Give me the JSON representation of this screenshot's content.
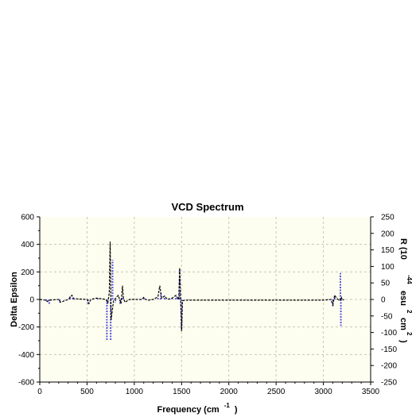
{
  "chart_data": {
    "type": "line",
    "title": "VCD Spectrum",
    "xlabel": {
      "main": "Frequency (cm",
      "sup": "-1",
      "end": ")"
    },
    "ylabel_left": "Delta Epsilon",
    "ylabel_right": {
      "parts": [
        "R (10",
        "-44",
        "esu",
        "2",
        "cm",
        "2",
        ")"
      ]
    },
    "xlim": [
      0,
      3500
    ],
    "ylim_left": [
      -600,
      600
    ],
    "ylim_right": [
      -250,
      250
    ],
    "x_ticks": [
      0,
      500,
      1000,
      1500,
      2000,
      2500,
      3000,
      3500
    ],
    "x_tick_labels": [
      "0",
      "500",
      "1000",
      "1500",
      "2000",
      "2500",
      "3000",
      "3500"
    ],
    "y_left_ticks": [
      -600,
      -400,
      -200,
      0,
      200,
      400,
      600
    ],
    "y_left_tick_labels": [
      "-600",
      "-400",
      "-200",
      "0",
      "200",
      "400",
      "600"
    ],
    "y_right_ticks": [
      -250,
      -200,
      -150,
      -100,
      -50,
      0,
      50,
      100,
      150,
      200,
      250
    ],
    "y_right_tick_labels": [
      "-250",
      "-200",
      "-150",
      "-100",
      "-50",
      "0",
      "50",
      "100",
      "150",
      "200",
      "250"
    ],
    "grid": true,
    "colors": {
      "background": "#fefef0",
      "spectrum": "#000000",
      "sticks": "#5555dd",
      "grid": "#c8c8b4"
    },
    "series": [
      {
        "role": "spectrum",
        "axis": "left",
        "x": [
          0,
          60,
          80,
          100,
          200,
          220,
          300,
          340,
          360,
          500,
          520,
          540,
          600,
          650,
          700,
          720,
          735,
          745,
          755,
          780,
          830,
          860,
          875,
          885,
          900,
          950,
          1080,
          1100,
          1120,
          1150,
          1200,
          1250,
          1270,
          1290,
          1320,
          1350,
          1400,
          1440,
          1470,
          1480,
          1490,
          1500,
          1510,
          1540,
          1600,
          2000,
          2500,
          3000,
          3080,
          3100,
          3120,
          3140,
          3170,
          3190,
          3200,
          3220
        ],
        "y": [
          0,
          -5,
          -15,
          -5,
          0,
          -20,
          0,
          30,
          5,
          0,
          -30,
          0,
          10,
          5,
          0,
          -25,
          50,
          420,
          -150,
          -10,
          30,
          -30,
          100,
          10,
          -20,
          0,
          0,
          15,
          0,
          -5,
          0,
          20,
          100,
          10,
          25,
          0,
          10,
          30,
          0,
          230,
          -5,
          -230,
          -10,
          -5,
          -5,
          -5,
          -5,
          -5,
          0,
          -40,
          30,
          10,
          -10,
          15,
          -5,
          0
        ]
      },
      {
        "role": "sticks",
        "axis": "right",
        "x": [
          70,
          100,
          210,
          320,
          350,
          510,
          610,
          710,
          750,
          770,
          800,
          850,
          880,
          1100,
          1250,
          1280,
          1320,
          1400,
          1440,
          1460,
          1480,
          1500,
          3100,
          3120,
          3180,
          3185
        ],
        "y": [
          -5,
          -15,
          -10,
          10,
          5,
          -15,
          5,
          -125,
          -125,
          120,
          -10,
          -15,
          10,
          5,
          8,
          20,
          10,
          5,
          10,
          8,
          90,
          -90,
          -20,
          12,
          80,
          -80
        ]
      }
    ]
  }
}
